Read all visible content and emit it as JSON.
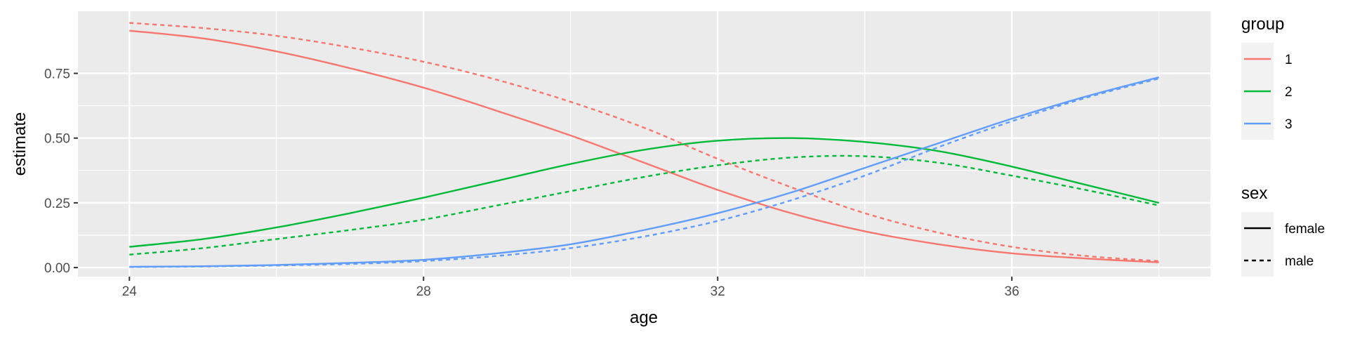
{
  "chart_data": {
    "type": "line",
    "xlabel": "age",
    "ylabel": "estimate",
    "xlim": [
      23.3,
      38.7
    ],
    "ylim": [
      -0.035,
      0.99
    ],
    "xticks": [
      24,
      28,
      32,
      36
    ],
    "xtick_labels": [
      "24",
      "28",
      "32",
      "36"
    ],
    "yticks": [
      0,
      0.25,
      0.5,
      0.75
    ],
    "ytick_labels": [
      "0.00",
      "0.25",
      "0.50",
      "0.75"
    ],
    "grid": true,
    "x": [
      24,
      25,
      26,
      27,
      28,
      29,
      30,
      31,
      32,
      33,
      34,
      35,
      36,
      37,
      38
    ],
    "series": [
      {
        "group": "1",
        "sex": "female",
        "values": [
          0.915,
          0.885,
          0.835,
          0.77,
          0.695,
          0.605,
          0.51,
          0.405,
          0.3,
          0.21,
          0.14,
          0.09,
          0.055,
          0.035,
          0.02
        ]
      },
      {
        "group": "1",
        "sex": "male",
        "values": [
          0.945,
          0.925,
          0.895,
          0.85,
          0.795,
          0.725,
          0.64,
          0.54,
          0.42,
          0.31,
          0.21,
          0.135,
          0.08,
          0.045,
          0.025
        ]
      },
      {
        "group": "2",
        "sex": "female",
        "values": [
          0.08,
          0.11,
          0.155,
          0.21,
          0.27,
          0.335,
          0.4,
          0.455,
          0.49,
          0.5,
          0.485,
          0.45,
          0.39,
          0.32,
          0.25
        ]
      },
      {
        "group": "2",
        "sex": "male",
        "values": [
          0.05,
          0.075,
          0.11,
          0.145,
          0.185,
          0.24,
          0.295,
          0.35,
          0.395,
          0.425,
          0.43,
          0.405,
          0.355,
          0.3,
          0.24
        ]
      },
      {
        "group": "3",
        "sex": "female",
        "values": [
          0.003,
          0.005,
          0.01,
          0.018,
          0.03,
          0.055,
          0.09,
          0.145,
          0.21,
          0.29,
          0.385,
          0.48,
          0.575,
          0.66,
          0.735
        ]
      },
      {
        "group": "3",
        "sex": "male",
        "values": [
          0.002,
          0.004,
          0.008,
          0.014,
          0.025,
          0.045,
          0.075,
          0.12,
          0.18,
          0.26,
          0.355,
          0.465,
          0.565,
          0.655,
          0.73
        ]
      }
    ],
    "legend": {
      "placement": "right",
      "color": {
        "title": "group",
        "entries": [
          {
            "label": "1",
            "color": "#F8766D"
          },
          {
            "label": "2",
            "color": "#00BA38"
          },
          {
            "label": "3",
            "color": "#619CFF"
          }
        ]
      },
      "linetype": {
        "title": "sex",
        "entries": [
          {
            "label": "female",
            "dash": "solid"
          },
          {
            "label": "male",
            "dash": "dotted"
          }
        ]
      }
    },
    "panel_bg": "#EBEBEB",
    "grid_color": "#FFFFFF"
  }
}
